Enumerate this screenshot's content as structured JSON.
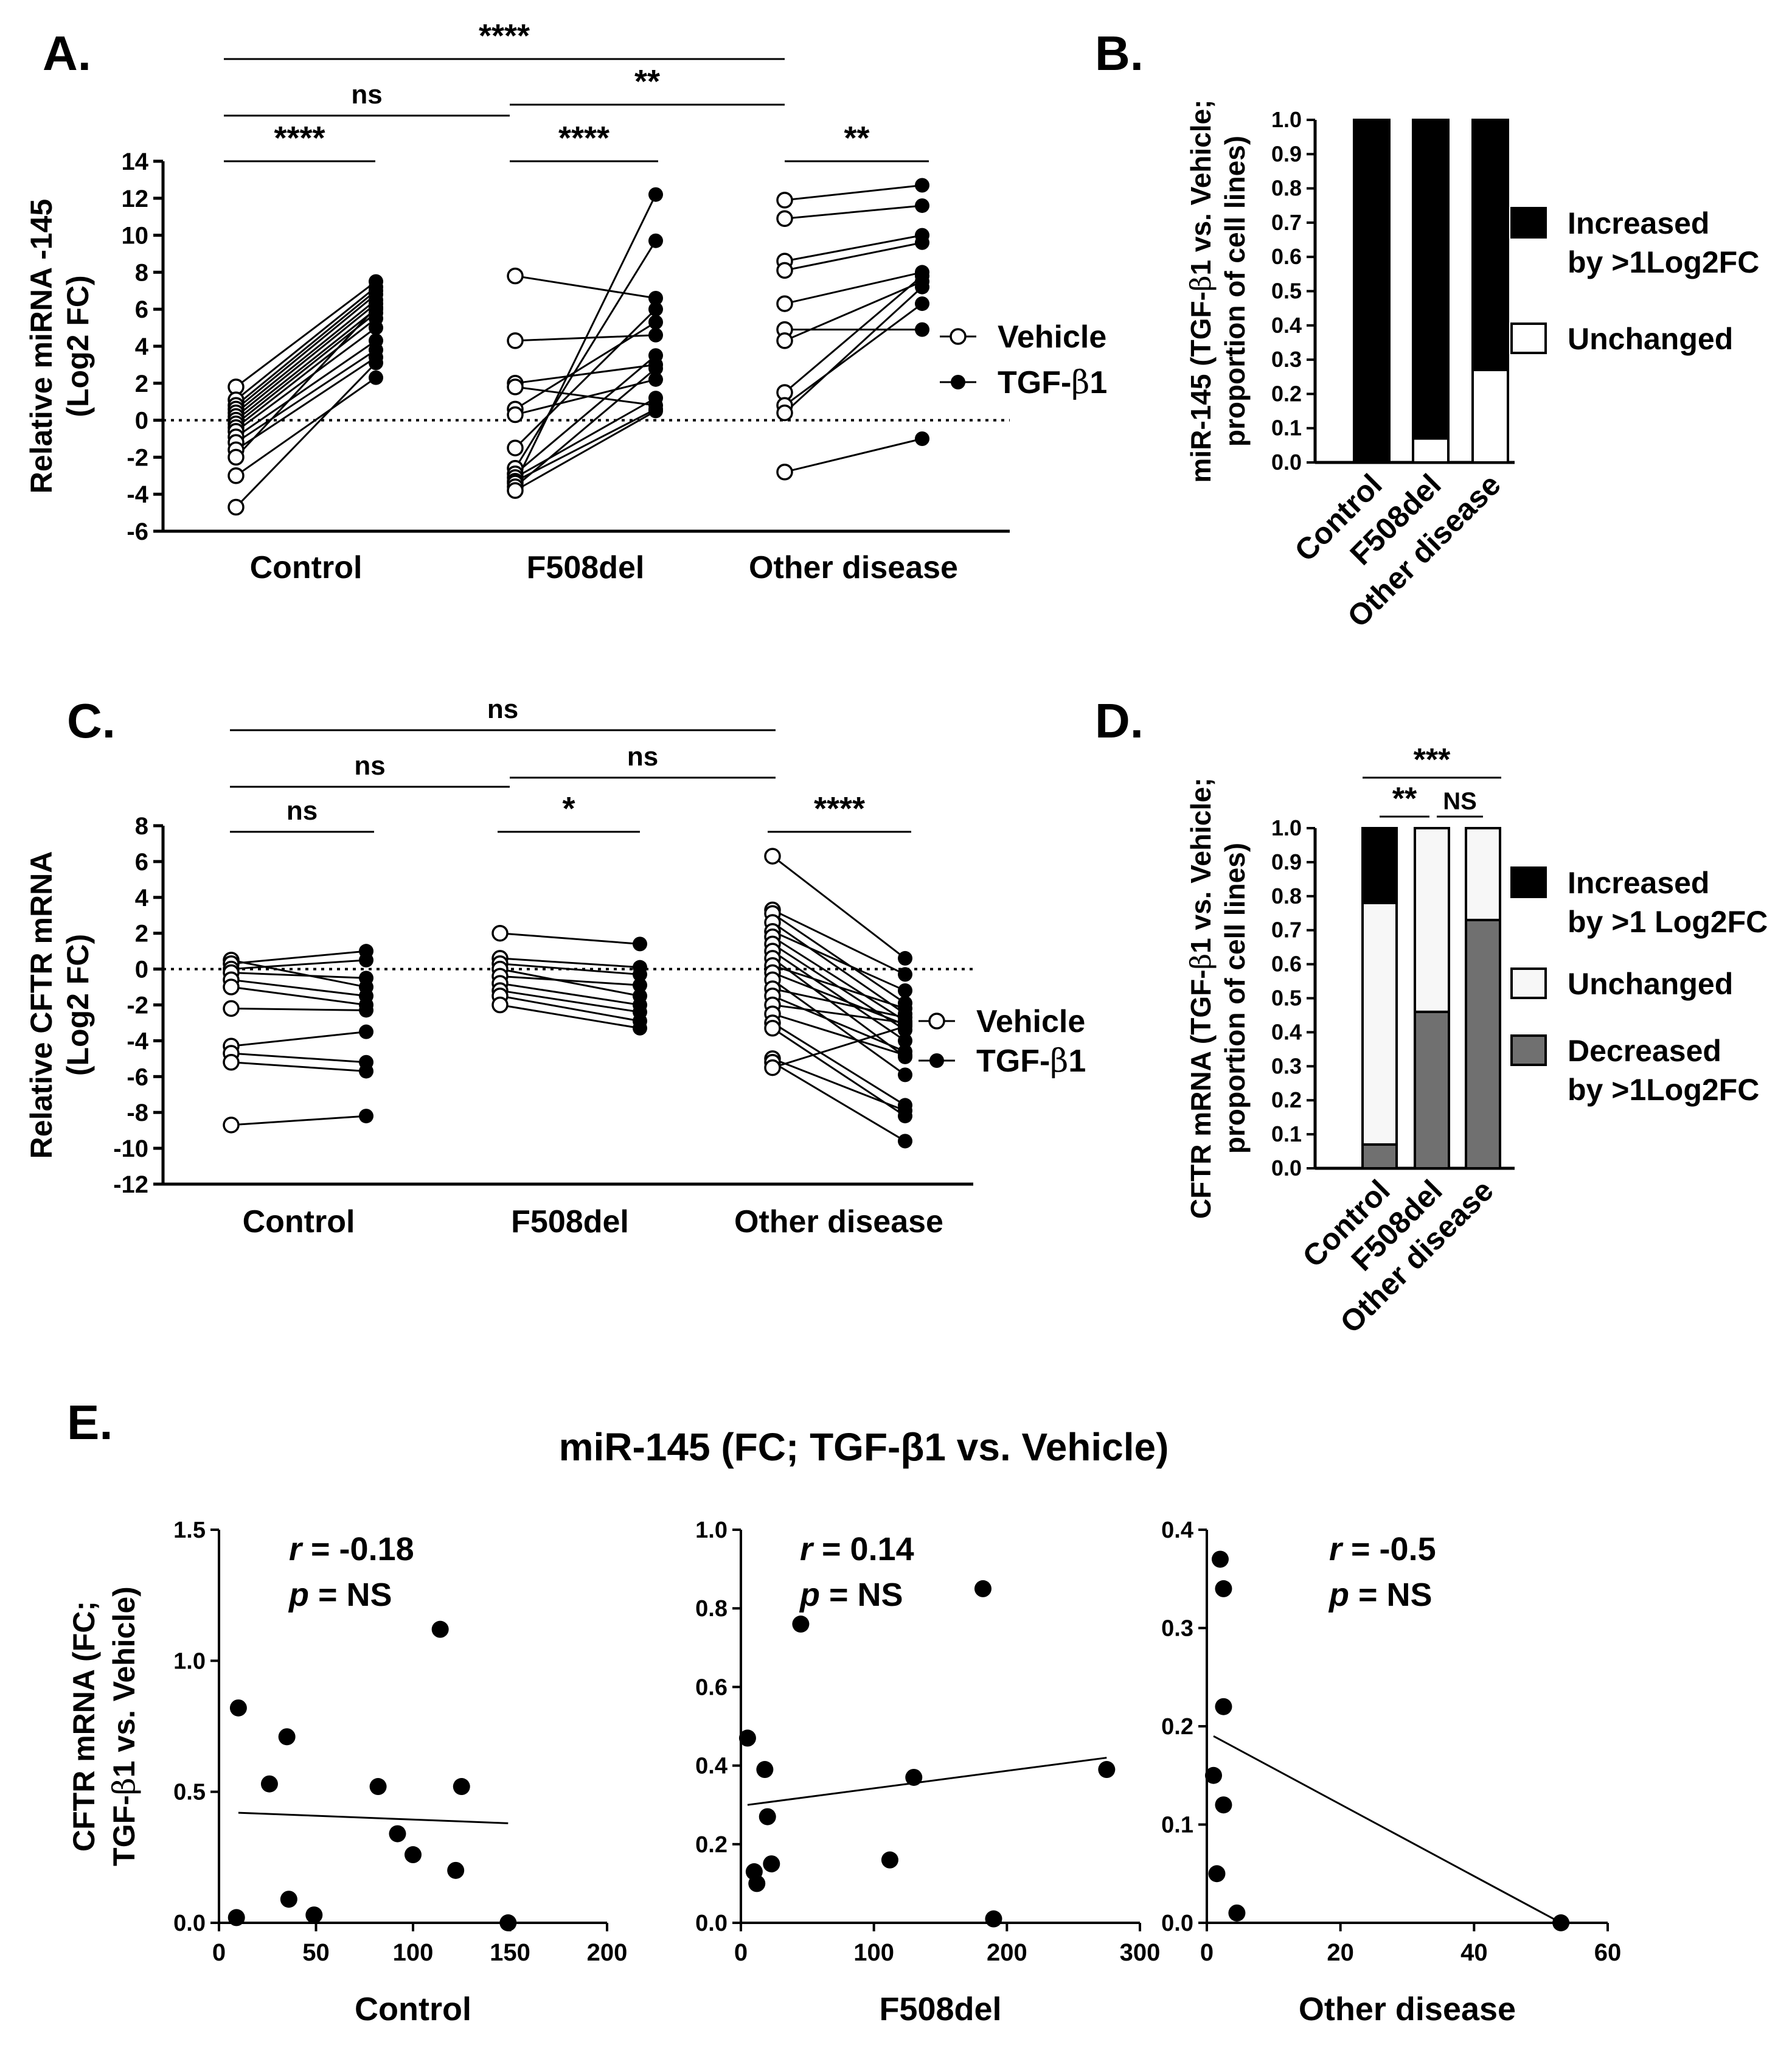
{
  "chart_data": [
    {
      "panel": "A.",
      "type": "scatter",
      "subtype": "paired",
      "ylabel_lines": [
        "Relative miRNA -145",
        "(Log2 FC)"
      ],
      "ylim": [
        -6,
        14
      ],
      "yticks": [
        -6,
        -4,
        -2,
        0,
        2,
        4,
        6,
        8,
        10,
        12,
        14
      ],
      "reference_line": 0,
      "groups": [
        {
          "name": "Control",
          "pairs": [
            [
              1.8,
              7.5
            ],
            [
              1.1,
              7.2
            ],
            [
              0.8,
              7.0
            ],
            [
              0.6,
              6.8
            ],
            [
              0.4,
              6.5
            ],
            [
              0.2,
              6.3
            ],
            [
              0.0,
              6.0
            ],
            [
              -0.2,
              5.8
            ],
            [
              -0.4,
              5.5
            ],
            [
              -0.6,
              5.0
            ],
            [
              -0.9,
              4.3
            ],
            [
              -1.2,
              3.8
            ],
            [
              -1.6,
              3.4
            ],
            [
              -2.0,
              6.1
            ],
            [
              -3.0,
              2.3
            ],
            [
              -4.7,
              3.1
            ]
          ]
        },
        {
          "name": "F508del",
          "pairs": [
            [
              7.8,
              6.6
            ],
            [
              4.3,
              4.6
            ],
            [
              2.0,
              3.0
            ],
            [
              1.8,
              0.8
            ],
            [
              0.6,
              5.3
            ],
            [
              0.3,
              2.2
            ],
            [
              -1.5,
              6.0
            ],
            [
              -2.6,
              9.7
            ],
            [
              -2.9,
              3.5
            ],
            [
              -3.1,
              1.2
            ],
            [
              -3.3,
              0.6
            ],
            [
              -3.4,
              12.2
            ],
            [
              -3.6,
              2.8
            ],
            [
              -3.8,
              0.5
            ]
          ]
        },
        {
          "name": "Other disease",
          "pairs": [
            [
              11.9,
              12.7
            ],
            [
              10.9,
              11.6
            ],
            [
              8.6,
              10.0
            ],
            [
              8.1,
              9.6
            ],
            [
              6.3,
              8.0
            ],
            [
              4.9,
              4.9
            ],
            [
              4.3,
              7.5
            ],
            [
              1.5,
              7.8
            ],
            [
              0.8,
              6.3
            ],
            [
              0.4,
              7.2
            ],
            [
              -2.8,
              -1.0
            ]
          ]
        }
      ],
      "legend": [
        {
          "label": "Vehicle"
        },
        {
          "label": "TGF-β1"
        }
      ],
      "significance": [
        {
          "from": "Control",
          "to": "Other disease",
          "label": "****"
        },
        {
          "from": "Control",
          "to": "F508del",
          "label": "ns"
        },
        {
          "from": "F508del",
          "to": "Other disease",
          "label": "**"
        },
        {
          "within": "Control",
          "label": "****"
        },
        {
          "within": "F508del",
          "label": "****"
        },
        {
          "within": "Other disease",
          "label": "**"
        }
      ]
    },
    {
      "panel": "B.",
      "type": "bar",
      "subtype": "stacked-proportion",
      "ylabel_lines": [
        "miR-145 (TGF-β1 vs. Vehicle;",
        "proportion of cell lines)"
      ],
      "categories": [
        "Control",
        "F508del",
        "Other disease"
      ],
      "ylim": [
        0,
        1
      ],
      "yticks": [
        0.0,
        0.1,
        0.2,
        0.3,
        0.4,
        0.5,
        0.6,
        0.7,
        0.8,
        0.9,
        1.0
      ],
      "series": [
        {
          "name": "Unchanged",
          "color": "#ffffff",
          "values": [
            0.0,
            0.07,
            0.27
          ]
        },
        {
          "name": "Increased by >1Log2FC",
          "color": "#000000",
          "values": [
            1.0,
            0.93,
            0.73
          ]
        }
      ],
      "legend": [
        {
          "lines": [
            "Increased",
            "by >1Log2FC"
          ],
          "color": "#000000"
        },
        {
          "lines": [
            "Unchanged"
          ],
          "color": "#ffffff"
        }
      ]
    },
    {
      "panel": "C.",
      "type": "scatter",
      "subtype": "paired",
      "ylabel_lines": [
        "Relative CFTR mRNA",
        "(Log2 FC)"
      ],
      "ylim": [
        -12,
        8
      ],
      "yticks": [
        -12,
        -10,
        -8,
        -6,
        -4,
        -2,
        0,
        2,
        4,
        6,
        8
      ],
      "reference_line": 0,
      "groups": [
        {
          "name": "Control",
          "pairs": [
            [
              0.5,
              -1.0
            ],
            [
              0.3,
              1.0
            ],
            [
              0.0,
              0.5
            ],
            [
              -0.2,
              -0.5
            ],
            [
              -0.6,
              -1.5
            ],
            [
              -1.0,
              -2.0
            ],
            [
              -2.2,
              -2.3
            ],
            [
              -4.3,
              -3.5
            ],
            [
              -4.7,
              -5.2
            ],
            [
              -5.2,
              -5.7
            ],
            [
              -8.7,
              -8.2
            ]
          ]
        },
        {
          "name": "F508del",
          "pairs": [
            [
              2.0,
              1.4
            ],
            [
              0.6,
              0.1
            ],
            [
              0.3,
              -0.3
            ],
            [
              0.0,
              -1.5
            ],
            [
              -0.4,
              -0.9
            ],
            [
              -0.8,
              -2.0
            ],
            [
              -1.2,
              -2.4
            ],
            [
              -1.5,
              -2.9
            ],
            [
              -2.0,
              -3.3
            ]
          ]
        },
        {
          "name": "Other disease",
          "pairs": [
            [
              6.3,
              0.6
            ],
            [
              3.3,
              -0.3
            ],
            [
              3.1,
              -1.9
            ],
            [
              2.6,
              -2.5
            ],
            [
              2.1,
              -1.2
            ],
            [
              1.8,
              -2.9
            ],
            [
              1.4,
              -3.4
            ],
            [
              1.0,
              -4.0
            ],
            [
              0.6,
              -4.9
            ],
            [
              0.2,
              -2.2
            ],
            [
              -0.2,
              -3.1
            ],
            [
              -0.6,
              -5.9
            ],
            [
              -1.1,
              -2.7
            ],
            [
              -1.5,
              -4.6
            ],
            [
              -2.0,
              -3.0
            ],
            [
              -2.5,
              -4.8
            ],
            [
              -3.0,
              -7.6
            ],
            [
              -3.3,
              -8.2
            ],
            [
              -5.0,
              -7.9
            ],
            [
              -5.2,
              -9.6
            ],
            [
              -5.5,
              -3.2
            ]
          ]
        }
      ],
      "legend": [
        {
          "label": "Vehicle"
        },
        {
          "label": "TGF-β1"
        }
      ],
      "significance": [
        {
          "from": "Control",
          "to": "Other disease",
          "label": "ns"
        },
        {
          "from": "Control",
          "to": "F508del",
          "label": "ns"
        },
        {
          "from": "F508del",
          "to": "Other disease",
          "label": "ns"
        },
        {
          "within": "Control",
          "label": "ns"
        },
        {
          "within": "F508del",
          "label": "*"
        },
        {
          "within": "Other disease",
          "label": "****"
        }
      ]
    },
    {
      "panel": "D.",
      "type": "bar",
      "subtype": "stacked-proportion",
      "ylabel_lines": [
        "CFTR mRNA (TGF-β1 vs. Vehicle;",
        "proportion of cell lines)"
      ],
      "categories": [
        "Control",
        "F508del",
        "Other disease"
      ],
      "ylim": [
        0,
        1
      ],
      "yticks": [
        0.0,
        0.1,
        0.2,
        0.3,
        0.4,
        0.5,
        0.6,
        0.7,
        0.8,
        0.9,
        1.0
      ],
      "series": [
        {
          "name": "Decreased by >1Log2FC",
          "color": "#707070",
          "values": [
            0.07,
            0.46,
            0.73
          ]
        },
        {
          "name": "Unchanged",
          "color": "#f7f7f7",
          "values": [
            0.71,
            0.54,
            0.27
          ]
        },
        {
          "name": "Increased by >1 Log2FC",
          "color": "#000000",
          "values": [
            0.22,
            0.0,
            0.0
          ]
        }
      ],
      "legend": [
        {
          "lines": [
            "Increased",
            "by >1 Log2FC"
          ],
          "color": "#000000"
        },
        {
          "lines": [
            "Unchanged"
          ],
          "color": "#f7f7f7"
        },
        {
          "lines": [
            "Decreased",
            "by >1Log2FC"
          ],
          "color": "#707070"
        }
      ],
      "significance": [
        {
          "from": "Control",
          "to": "Other disease",
          "label": "***"
        },
        {
          "from": "Control",
          "to": "F508del",
          "label": "**"
        },
        {
          "from": "F508del",
          "to": "Other disease",
          "label": "NS"
        }
      ]
    },
    {
      "panel": "E.",
      "type": "scatter",
      "subtype": "correlation",
      "title": "miR-145 (FC; TGF-β1 vs. Vehicle)",
      "ylabel_lines": [
        "CFTR mRNA (FC;",
        "TGF-β1 vs. Vehicle)"
      ],
      "subplots": [
        {
          "xlabel": "Control",
          "xlim": [
            0,
            200
          ],
          "xticks": [
            0,
            50,
            100,
            150,
            200
          ],
          "ylim": [
            0,
            1.5
          ],
          "yticks": [
            0.0,
            0.5,
            1.0,
            1.5
          ],
          "ytick_decimals": 1,
          "r_text": "-0.18",
          "p_text": "NS",
          "points": [
            [
              9,
              0.02
            ],
            [
              10,
              0.82
            ],
            [
              26,
              0.53
            ],
            [
              35,
              0.71
            ],
            [
              36,
              0.09
            ],
            [
              49,
              0.03
            ],
            [
              82,
              0.52
            ],
            [
              92,
              0.34
            ],
            [
              100,
              0.26
            ],
            [
              114,
              1.12
            ],
            [
              122,
              0.2
            ],
            [
              125,
              0.52
            ],
            [
              149,
              0.0
            ]
          ],
          "fit": [
            [
              10,
              0.42
            ],
            [
              149,
              0.38
            ]
          ]
        },
        {
          "xlabel": "F508del",
          "xlim": [
            0,
            300
          ],
          "xticks": [
            0,
            100,
            200,
            300
          ],
          "ylim": [
            0,
            1.0
          ],
          "yticks": [
            0.0,
            0.2,
            0.4,
            0.6,
            0.8,
            1.0
          ],
          "ytick_decimals": 1,
          "r_text": "0.14",
          "p_text": "NS",
          "points": [
            [
              5,
              0.47
            ],
            [
              10,
              0.13
            ],
            [
              12,
              0.1
            ],
            [
              18,
              0.39
            ],
            [
              20,
              0.27
            ],
            [
              23,
              0.15
            ],
            [
              45,
              0.76
            ],
            [
              112,
              0.16
            ],
            [
              130,
              0.37
            ],
            [
              182,
              0.85
            ],
            [
              190,
              0.01
            ],
            [
              275,
              0.39
            ]
          ],
          "fit": [
            [
              5,
              0.3
            ],
            [
              275,
              0.42
            ]
          ]
        },
        {
          "xlabel": "Other disease",
          "xlim": [
            0,
            60
          ],
          "xticks": [
            0,
            20,
            40,
            60
          ],
          "ylim": [
            0,
            0.4
          ],
          "yticks": [
            0.0,
            0.1,
            0.2,
            0.3,
            0.4
          ],
          "ytick_decimals": 1,
          "r_text": "-0.5",
          "p_text": "NS",
          "points": [
            [
              1,
              0.15
            ],
            [
              1.5,
              0.05
            ],
            [
              2,
              0.37
            ],
            [
              2.5,
              0.34
            ],
            [
              2.5,
              0.22
            ],
            [
              2.5,
              0.12
            ],
            [
              4.5,
              0.01
            ],
            [
              53,
              0.0
            ]
          ],
          "fit": [
            [
              1,
              0.19
            ],
            [
              53,
              0.0
            ]
          ]
        }
      ]
    }
  ]
}
